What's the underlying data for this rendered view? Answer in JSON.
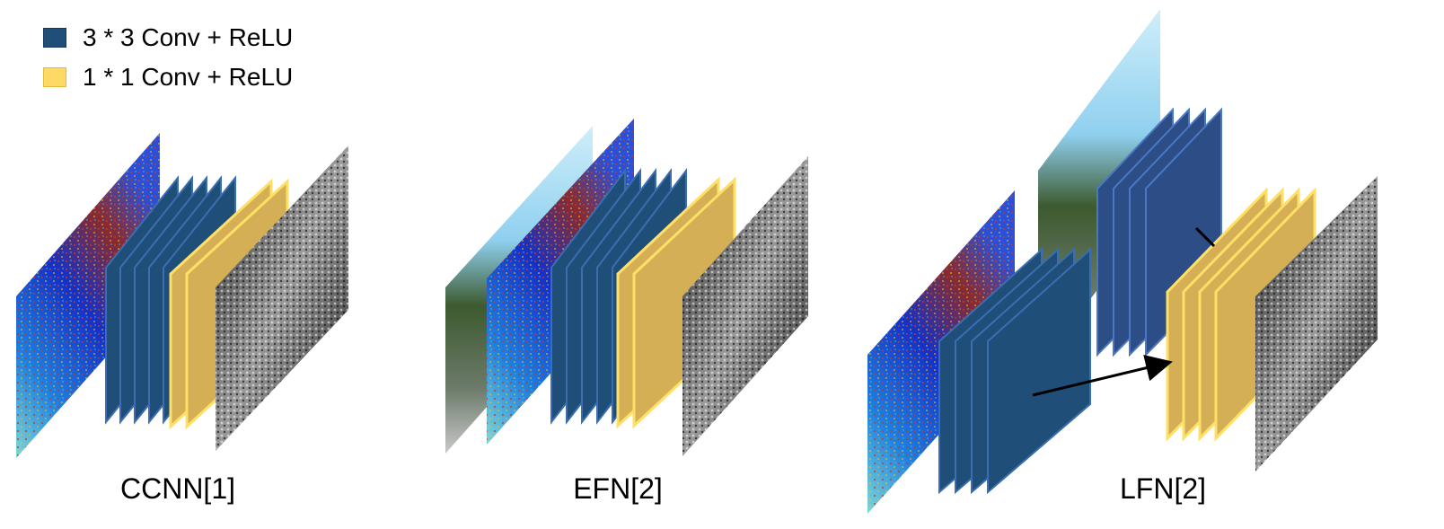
{
  "legend": {
    "dark_label": "3 * 3 Conv + ReLU",
    "light_label": "1 * 1 Conv + ReLU"
  },
  "colors": {
    "conv3_face": "#1f4e79",
    "conv3_edge": "#3a6eb0",
    "conv3_face_lfn": "#2c4d85",
    "conv1_face": "#d4af55",
    "conv1_edge": "#ffe066",
    "arrow": "#000000"
  },
  "captions": {
    "ccnn": "CCNN[1]",
    "efn": "EFN[2]",
    "lfn": "LFN[2]"
  },
  "icons": [
    "cost-map-image",
    "rgb-image",
    "confidence-map-image",
    "arrow-icon"
  ]
}
